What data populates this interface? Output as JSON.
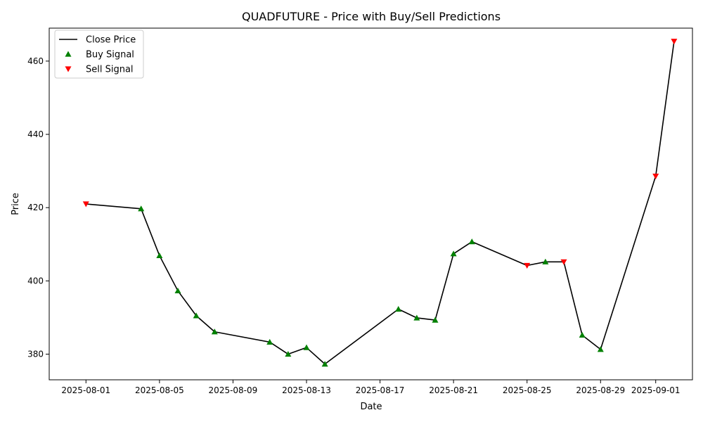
{
  "chart_data": {
    "type": "line",
    "title": "QUADFUTURE - Price with Buy/Sell Predictions",
    "xlabel": "Date",
    "ylabel": "Price",
    "x_tick_labels": [
      "2025-08-01",
      "2025-08-05",
      "2025-08-09",
      "2025-08-13",
      "2025-08-17",
      "2025-08-21",
      "2025-08-25",
      "2025-08-29",
      "2025-09-01"
    ],
    "y_tick_labels": [
      "380",
      "400",
      "420",
      "440",
      "460"
    ],
    "ylim": [
      373,
      469
    ],
    "xlim": [
      "2025-07-30",
      "2025-09-03"
    ],
    "grid": false,
    "legend_position": "top-left",
    "series": [
      {
        "name": "Close Price",
        "kind": "line",
        "color": "#000000",
        "points": [
          {
            "x": "2025-08-01",
            "y": 421.0
          },
          {
            "x": "2025-08-04",
            "y": 419.7
          },
          {
            "x": "2025-08-05",
            "y": 406.9
          },
          {
            "x": "2025-08-06",
            "y": 397.3
          },
          {
            "x": "2025-08-07",
            "y": 390.5
          },
          {
            "x": "2025-08-08",
            "y": 386.1
          },
          {
            "x": "2025-08-11",
            "y": 383.3
          },
          {
            "x": "2025-08-12",
            "y": 380.0
          },
          {
            "x": "2025-08-13",
            "y": 381.8
          },
          {
            "x": "2025-08-14",
            "y": 377.3
          },
          {
            "x": "2025-08-18",
            "y": 392.3
          },
          {
            "x": "2025-08-19",
            "y": 389.9
          },
          {
            "x": "2025-08-20",
            "y": 389.3
          },
          {
            "x": "2025-08-21",
            "y": 407.4
          },
          {
            "x": "2025-08-22",
            "y": 410.7
          },
          {
            "x": "2025-08-25",
            "y": 404.2
          },
          {
            "x": "2025-08-26",
            "y": 405.2
          },
          {
            "x": "2025-08-27",
            "y": 405.2
          },
          {
            "x": "2025-08-28",
            "y": 385.2
          },
          {
            "x": "2025-08-29",
            "y": 381.3
          },
          {
            "x": "2025-09-01",
            "y": 428.6
          },
          {
            "x": "2025-09-02",
            "y": 465.4
          }
        ]
      },
      {
        "name": "Buy Signal",
        "kind": "scatter",
        "marker": "triangle-up",
        "color": "#008000",
        "points": [
          {
            "x": "2025-08-04",
            "y": 419.7
          },
          {
            "x": "2025-08-05",
            "y": 406.9
          },
          {
            "x": "2025-08-06",
            "y": 397.3
          },
          {
            "x": "2025-08-07",
            "y": 390.5
          },
          {
            "x": "2025-08-08",
            "y": 386.1
          },
          {
            "x": "2025-08-11",
            "y": 383.3
          },
          {
            "x": "2025-08-12",
            "y": 380.0
          },
          {
            "x": "2025-08-13",
            "y": 381.8
          },
          {
            "x": "2025-08-14",
            "y": 377.3
          },
          {
            "x": "2025-08-18",
            "y": 392.3
          },
          {
            "x": "2025-08-19",
            "y": 389.9
          },
          {
            "x": "2025-08-20",
            "y": 389.3
          },
          {
            "x": "2025-08-21",
            "y": 407.4
          },
          {
            "x": "2025-08-22",
            "y": 410.7
          },
          {
            "x": "2025-08-26",
            "y": 405.2
          },
          {
            "x": "2025-08-28",
            "y": 385.2
          },
          {
            "x": "2025-08-29",
            "y": 381.3
          }
        ]
      },
      {
        "name": "Sell Signal",
        "kind": "scatter",
        "marker": "triangle-down",
        "color": "#ff0000",
        "points": [
          {
            "x": "2025-08-01",
            "y": 421.0
          },
          {
            "x": "2025-08-25",
            "y": 404.2
          },
          {
            "x": "2025-08-27",
            "y": 405.2
          },
          {
            "x": "2025-09-01",
            "y": 428.6
          },
          {
            "x": "2025-09-02",
            "y": 465.4
          }
        ]
      }
    ]
  }
}
